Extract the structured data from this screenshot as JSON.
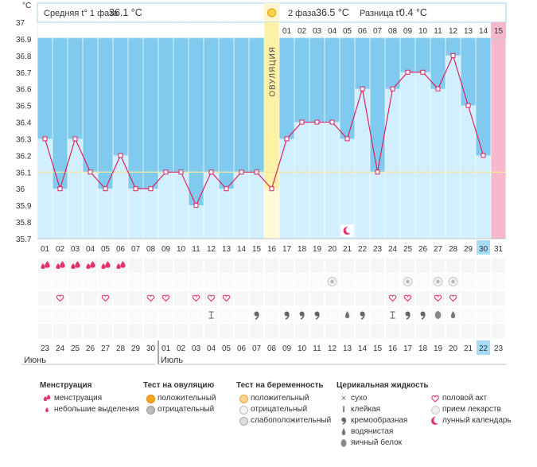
{
  "chart_data": {
    "type": "line",
    "y_unit": "°C",
    "ylim": [
      35.7,
      37.0
    ],
    "y_ticks": [
      "37",
      "36.9",
      "36.8",
      "36.7",
      "36.6",
      "36.5",
      "36.4",
      "36.3",
      "36.2",
      "36.1",
      "36",
      "35.9",
      "35.8",
      "35.7"
    ],
    "cycle_days": [
      "01",
      "02",
      "03",
      "04",
      "05",
      "06",
      "07",
      "08",
      "09",
      "10",
      "11",
      "12",
      "13",
      "14",
      "15",
      "16",
      "17",
      "18",
      "19",
      "20",
      "21",
      "22",
      "23",
      "24",
      "25",
      "26",
      "27",
      "28",
      "29",
      "30",
      "31"
    ],
    "values": [
      36.3,
      36.0,
      36.3,
      36.1,
      36.0,
      36.2,
      36.0,
      36.0,
      36.1,
      36.1,
      35.9,
      36.1,
      36.0,
      36.1,
      36.1,
      36.0,
      36.3,
      36.4,
      36.4,
      36.4,
      36.3,
      36.6,
      36.1,
      36.6,
      36.7,
      36.7,
      36.6,
      36.8,
      36.5,
      36.2,
      null
    ],
    "average_line": 36.1,
    "ovulation_day": 16,
    "ovulation_label": "ОВУЛЯЦИЯ",
    "phase2_days": [
      "01",
      "02",
      "03",
      "04",
      "05",
      "06",
      "07",
      "08",
      "09",
      "10",
      "11",
      "12",
      "13",
      "14",
      "15"
    ],
    "header": {
      "phase1_label": "Средняя t° 1 фаза",
      "phase1_value": "36.1 °C",
      "phase2_label": "2 фаза",
      "phase2_value": "36.5 °C",
      "diff_label": "Разница t°",
      "diff_value": "0.4 °C"
    }
  },
  "calendar": {
    "dates": [
      "23",
      "24",
      "25",
      "26",
      "27",
      "28",
      "29",
      "30",
      "01",
      "02",
      "03",
      "04",
      "05",
      "06",
      "07",
      "08",
      "09",
      "10",
      "11",
      "12",
      "13",
      "14",
      "15",
      "16",
      "17",
      "18",
      "19",
      "20",
      "21",
      "22",
      "23"
    ],
    "weekend_dates": [
      0,
      6,
      7,
      13,
      14,
      20,
      21,
      27,
      28
    ],
    "today_index": 29,
    "month_labels": [
      "Июнь",
      "Июль"
    ]
  },
  "markers": {
    "menstruation": [
      1,
      2,
      3,
      4,
      5,
      6
    ],
    "ovulation_test_negative": [
      20,
      25,
      27,
      28
    ],
    "intercourse": [
      2,
      5,
      8,
      9,
      11,
      12,
      13,
      24,
      25,
      27,
      28
    ],
    "sticky": [
      12,
      24
    ],
    "creamy": [
      15,
      17,
      18,
      19,
      22,
      25,
      26
    ],
    "watery": [
      21,
      28
    ],
    "egg_white": [
      27
    ],
    "lunar": [
      21
    ]
  },
  "legend": {
    "groups": [
      {
        "title": "Менструация",
        "items": [
          {
            "icon": "drop-double-icon",
            "label": "менструация"
          },
          {
            "icon": "drop-small-icon",
            "label": "небольшие выделения"
          }
        ]
      },
      {
        "title": "Тест на овуляцию",
        "items": [
          {
            "icon": "positive-test-icon",
            "label": "положительный"
          },
          {
            "icon": "negative-test-icon",
            "label": "отрицательный"
          }
        ]
      },
      {
        "title": "Тест на беременность",
        "items": [
          {
            "icon": "pregnancy-positive-icon",
            "label": "положительный"
          },
          {
            "icon": "pregnancy-negative-icon",
            "label": "отрицательный"
          },
          {
            "icon": "pregnancy-weak-icon",
            "label": "слабоположительный"
          }
        ]
      },
      {
        "title": "Церикальная жидкость",
        "items": [
          {
            "icon": "dry-icon",
            "label": "сухо"
          },
          {
            "icon": "sticky-icon",
            "label": "клейкая"
          },
          {
            "icon": "creamy-icon",
            "label": "кремообразная"
          },
          {
            "icon": "watery-icon",
            "label": "водянистая"
          },
          {
            "icon": "egg-white-icon",
            "label": "яичный белок"
          }
        ]
      },
      {
        "title": "",
        "items": [
          {
            "icon": "heart-icon",
            "label": "половой акт"
          },
          {
            "icon": "pill-icon",
            "label": "прием лекарств"
          },
          {
            "icon": "moon-icon",
            "label": "лунный календарь"
          }
        ]
      }
    ]
  }
}
